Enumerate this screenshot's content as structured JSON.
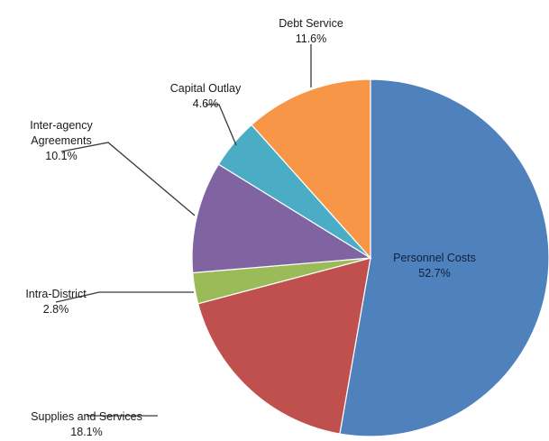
{
  "chart_data": {
    "type": "pie",
    "title": "",
    "start_angle_deg": 0,
    "direction": "clockwise",
    "slices": [
      {
        "name": "Personnel Costs",
        "value": 52.7,
        "pct_label": "52.7%",
        "color": "#4f81bd"
      },
      {
        "name": "Supplies and Services",
        "value": 18.1,
        "pct_label": "18.1%",
        "color": "#c0504d"
      },
      {
        "name": "Intra-District",
        "value": 2.8,
        "pct_label": "2.8%",
        "color": "#9bbb59"
      },
      {
        "name": "Inter-agency Agreements",
        "value": 10.1,
        "pct_label": "10.1%",
        "color": "#8064a2"
      },
      {
        "name": "Capital Outlay",
        "value": 4.6,
        "pct_label": "4.6%",
        "color": "#4bacc6"
      },
      {
        "name": "Debt Service",
        "value": 11.6,
        "pct_label": "11.6%",
        "color": "#f79646"
      }
    ]
  }
}
